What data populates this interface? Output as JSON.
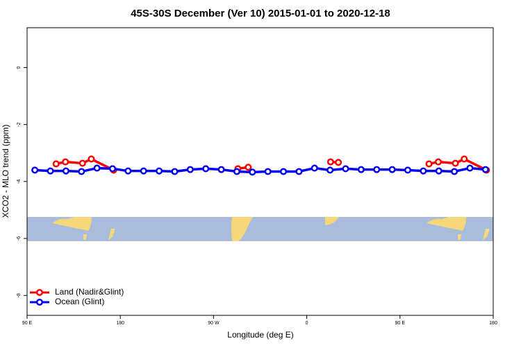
{
  "chart_data": {
    "type": "line",
    "title": "45S-30S December (Ver 10)   2015-01-01 to 2020-12-18",
    "x_label": "Longitude (deg E)",
    "y_label": "XCO2 - MLO trend (ppm)",
    "xlim": [
      90,
      540
    ],
    "xticks": [
      {
        "value": 90,
        "label": "90 E"
      },
      180,
      {
        "value": 270,
        "label": "90 W"
      },
      {
        "value": 360,
        "label": "0"
      },
      {
        "value": 450,
        "label": "90 E"
      },
      {
        "value": 540,
        "label": "180"
      }
    ],
    "ylim": [
      -8.7,
      1.4
    ],
    "yticks": [
      0,
      -2,
      -4,
      -6,
      -8
    ],
    "legend": "bottom-left",
    "series": [
      {
        "name": "Land (Nadir&Glint)",
        "color": "#ff0000",
        "x": [
          118,
          127,
          143.5,
          152,
          173.5,
          null,
          293.5,
          303.5,
          null,
          383,
          390.5,
          null,
          478,
          487,
          503.5,
          512,
          533.5
        ],
        "values": [
          -3.38,
          -3.31,
          -3.36,
          -3.21,
          -3.6,
          null,
          -3.55,
          -3.5,
          null,
          -3.31,
          -3.33,
          null,
          -3.38,
          -3.31,
          -3.36,
          -3.21,
          -3.6
        ]
      },
      {
        "name": "Ocean (Glint)",
        "color": "#0000ee",
        "x": [
          97.5,
          112.5,
          127.5,
          142.5,
          157.5,
          172.5,
          187.5,
          202.5,
          217.5,
          232.5,
          247.5,
          262.5,
          277.5,
          292.5,
          307.5,
          322.5,
          337.5,
          352.5,
          367.5,
          382.5,
          397.5,
          412.5,
          427.5,
          442.5,
          457.5,
          472.5,
          487.5,
          502.5,
          517.5,
          532.5
        ],
        "values": [
          -3.6,
          -3.63,
          -3.63,
          -3.65,
          -3.53,
          -3.55,
          -3.63,
          -3.63,
          -3.63,
          -3.65,
          -3.58,
          -3.55,
          -3.58,
          -3.65,
          -3.67,
          -3.65,
          -3.65,
          -3.65,
          -3.53,
          -3.6,
          -3.55,
          -3.58,
          -3.58,
          -3.58,
          -3.6,
          -3.63,
          -3.63,
          -3.65,
          -3.53,
          -3.58
        ]
      }
    ]
  }
}
